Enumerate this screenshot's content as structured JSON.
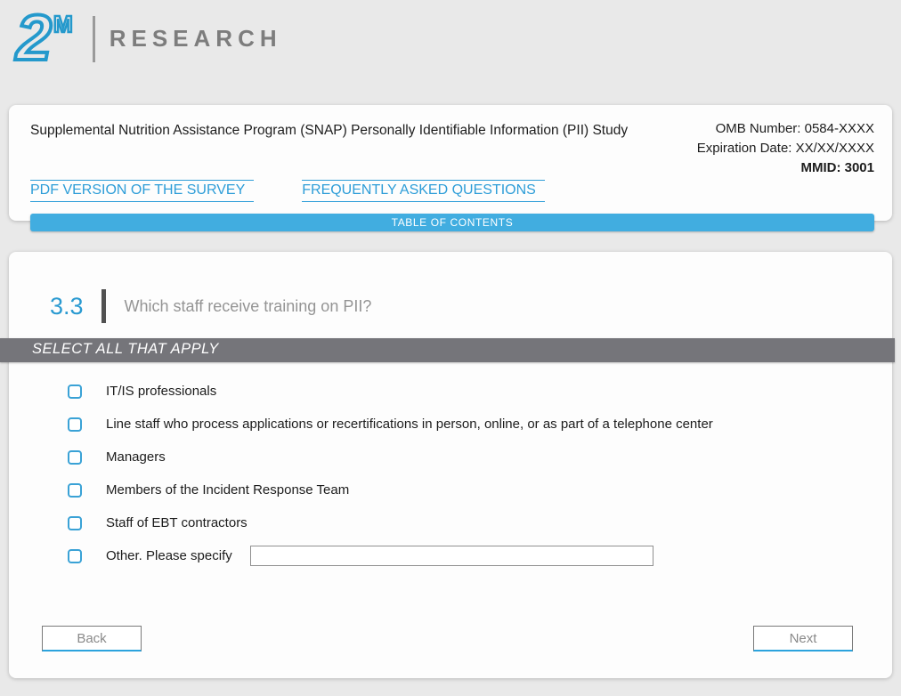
{
  "logo": {
    "mark": "2",
    "mark_superscript": "M",
    "wordmark": "RESEARCH"
  },
  "header": {
    "title": "Supplemental Nutrition Assistance Program (SNAP) Personally Identifiable Information (PII) Study",
    "omb_number": "OMB Number: 0584-XXXX",
    "expiration_date": "Expiration Date: XX/XX/XXXX",
    "mmid": "MMID: 3001",
    "links": [
      {
        "label": "PDF VERSION OF THE SURVEY"
      },
      {
        "label": "FREQUENTLY ASKED QUESTIONS"
      }
    ],
    "toc_label": "TABLE OF CONTENTS"
  },
  "question": {
    "number": "3.3",
    "text": "Which staff receive training on PII?",
    "instruction": "SELECT ALL THAT APPLY",
    "options": [
      {
        "label": "IT/IS professionals",
        "checked": false
      },
      {
        "label": "Line staff who process applications or recertifications in person, online, or as part of a telephone center",
        "checked": false
      },
      {
        "label": "Managers",
        "checked": false
      },
      {
        "label": "Members of the Incident Response Team",
        "checked": false
      },
      {
        "label": "Staff of EBT contractors",
        "checked": false
      },
      {
        "label": "Other. Please specify",
        "checked": false,
        "input_value": ""
      }
    ]
  },
  "nav": {
    "back_label": "Back",
    "next_label": "Next"
  },
  "colors": {
    "accent_blue": "#41ade0",
    "link_blue": "#2d9dd8",
    "logo_blue": "#2499cc",
    "question_number_blue": "#2a9ad1",
    "instruction_bar_gray": "#75757a",
    "page_background": "#e9e9e9",
    "card_background": "#fdfdfd"
  }
}
